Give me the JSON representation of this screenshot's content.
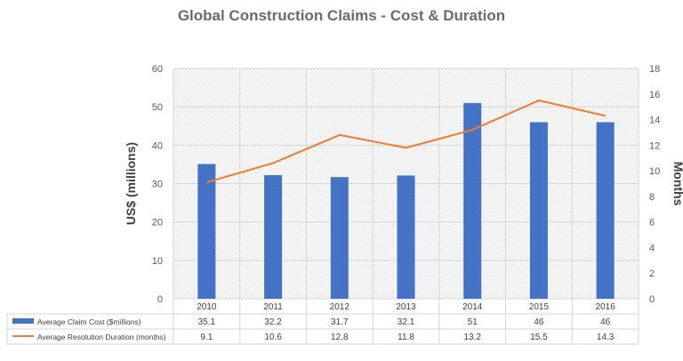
{
  "chart_data": {
    "type": "bar",
    "title": "Global Construction Claims - Cost & Duration",
    "categories": [
      "2010",
      "2011",
      "2012",
      "2013",
      "2014",
      "2015",
      "2016"
    ],
    "ylabel": "US$ (millions)",
    "y2label": "Months",
    "ylim": [
      0,
      60
    ],
    "y2lim": [
      0,
      18
    ],
    "yticks": [
      0,
      10,
      20,
      30,
      40,
      50,
      60
    ],
    "y2ticks": [
      0,
      2,
      4,
      6,
      8,
      10,
      12,
      14,
      16,
      18
    ],
    "grid": true,
    "data_table": true,
    "series": [
      {
        "name": "Average Claim Cost ($millions)",
        "type": "bar",
        "axis": "primary",
        "color": "#4472c4",
        "values": [
          35.1,
          32.2,
          31.7,
          32.1,
          51,
          46,
          46
        ],
        "labels": [
          "35.1",
          "32.2",
          "31.7",
          "32.1",
          "51",
          "46",
          "46"
        ]
      },
      {
        "name": "Average Resolution Duration (months)",
        "type": "line",
        "axis": "secondary",
        "color": "#ed7d31",
        "values": [
          9.1,
          10.6,
          12.8,
          11.8,
          13.2,
          15.5,
          14.3
        ],
        "labels": [
          "9.1",
          "10.6",
          "12.8",
          "11.8",
          "13.2",
          "15.5",
          "14.3"
        ]
      }
    ]
  }
}
